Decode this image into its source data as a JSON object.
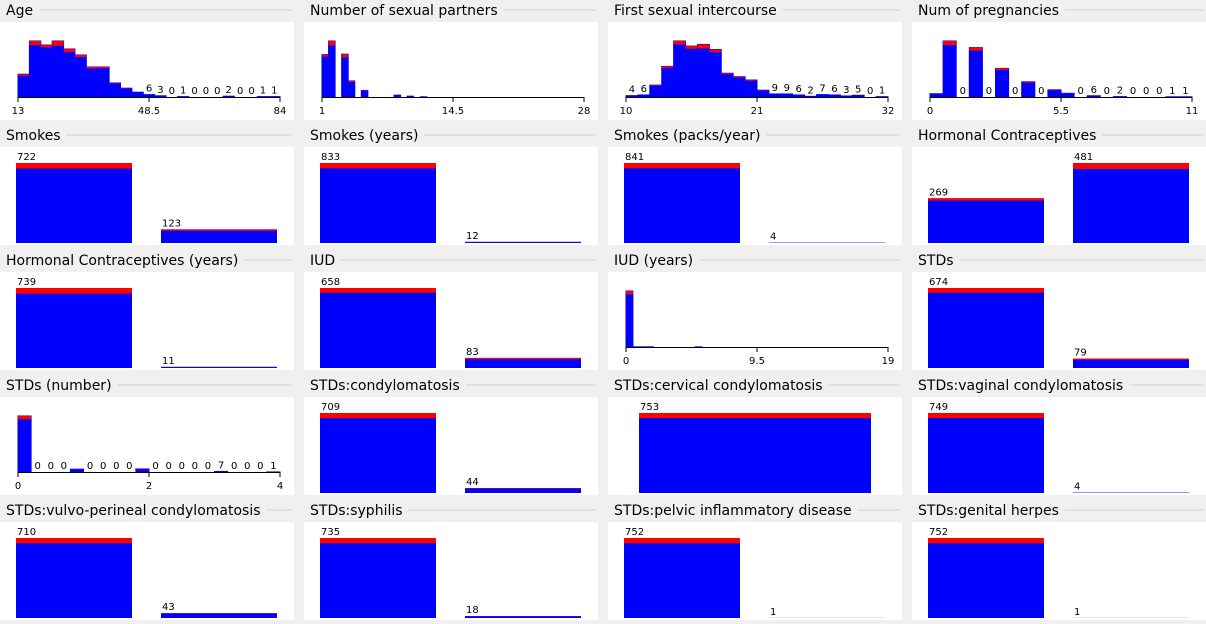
{
  "bar_color": "#0000ff",
  "top_color": "#ff0000",
  "panels": [
    {
      "title": "Age",
      "kind": "numeric",
      "axis": [
        13,
        48.5,
        84
      ],
      "values": [
        57,
        140,
        130,
        140,
        120,
        105,
        75,
        75,
        35,
        22,
        12,
        6,
        3,
        0,
        1,
        0,
        0,
        0,
        2,
        0,
        0,
        1,
        1
      ],
      "red": [
        4,
        10,
        6,
        12,
        8,
        5,
        4,
        3,
        1,
        1,
        0,
        0,
        0,
        0,
        0,
        0,
        0,
        0,
        0,
        0,
        0,
        0,
        0
      ],
      "value_labels": [
        null,
        null,
        null,
        null,
        null,
        null,
        null,
        null,
        null,
        null,
        null,
        "6",
        "3",
        "0",
        "1",
        "0",
        "0",
        "0",
        "2",
        "0",
        "0",
        "1",
        "1"
      ]
    },
    {
      "title": "Number of sexual partners",
      "kind": "numeric",
      "axis": [
        1,
        14.5,
        28
      ],
      "values": [
        206,
        272,
        0,
        208,
        78,
        0,
        32,
        0,
        0,
        0,
        0,
        9,
        0,
        4,
        0,
        1,
        0,
        0,
        0,
        0,
        0,
        0,
        0,
        0,
        0,
        0,
        0,
        0,
        0,
        0,
        0,
        0,
        0,
        0,
        0,
        0,
        0,
        0,
        0,
        0
      ],
      "red": [
        10,
        22,
        0,
        15,
        5,
        0,
        2,
        0,
        0,
        0,
        0,
        0,
        0,
        0,
        0,
        0,
        0,
        0,
        0,
        0,
        0,
        0,
        0,
        0,
        0,
        0,
        0,
        0,
        0,
        0,
        0,
        0,
        0,
        0,
        0,
        0,
        0,
        0,
        0,
        0
      ]
    },
    {
      "title": "First sexual intercourse",
      "kind": "numeric",
      "axis": [
        10,
        21,
        32
      ],
      "values": [
        4,
        6,
        35,
        90,
        165,
        150,
        155,
        140,
        70,
        60,
        50,
        20,
        9,
        9,
        6,
        2,
        7,
        6,
        3,
        5,
        0,
        1
      ],
      "red": [
        0,
        0,
        2,
        5,
        10,
        8,
        12,
        8,
        3,
        3,
        2,
        1,
        0,
        0,
        0,
        0,
        0,
        0,
        0,
        0,
        0,
        0
      ],
      "value_labels": [
        "4",
        "6",
        null,
        null,
        null,
        null,
        null,
        null,
        null,
        null,
        null,
        null,
        "9",
        "9",
        "6",
        "2",
        "7",
        "6",
        "3",
        "5",
        "0",
        "1"
      ]
    },
    {
      "title": "Num of pregnancies",
      "kind": "numeric",
      "axis": [
        0,
        5.5,
        11
      ],
      "values": [
        16,
        272,
        0,
        240,
        0,
        139,
        0,
        74,
        0,
        35,
        18,
        0,
        6,
        0,
        2,
        0,
        0,
        0,
        1,
        1
      ],
      "red": [
        1,
        20,
        0,
        15,
        0,
        8,
        0,
        4,
        0,
        2,
        1,
        0,
        0,
        0,
        0,
        0,
        0,
        0,
        0,
        0
      ],
      "value_labels": [
        null,
        null,
        "0",
        null,
        "0",
        null,
        "0",
        null,
        "0",
        null,
        null,
        "0",
        "6",
        "0",
        "2",
        "0",
        "0",
        "0",
        "1",
        "1"
      ]
    },
    {
      "title": "Smokes",
      "kind": "nominal",
      "values": [
        722,
        123
      ],
      "red": [
        50,
        12
      ]
    },
    {
      "title": "Smokes (years)",
      "kind": "nominal",
      "values": [
        833,
        12
      ],
      "red": [
        55,
        2
      ]
    },
    {
      "title": "Smokes (packs/year)",
      "kind": "nominal",
      "values": [
        841,
        4
      ],
      "red": [
        55,
        1
      ]
    },
    {
      "title": "Hormonal Contraceptives",
      "kind": "nominal",
      "values": [
        269,
        481
      ],
      "red": [
        14,
        36
      ]
    },
    {
      "title": "Hormonal Contraceptives (years)",
      "kind": "nominal",
      "values": [
        739,
        11
      ],
      "red": [
        52,
        1
      ]
    },
    {
      "title": "IUD",
      "kind": "nominal",
      "values": [
        658,
        83
      ],
      "red": [
        40,
        10
      ]
    },
    {
      "title": "IUD (years)",
      "kind": "numeric",
      "axis": [
        0,
        9.5,
        19
      ],
      "values": [
        658,
        2,
        2,
        2,
        0,
        0,
        0,
        0,
        0,
        0,
        2,
        0,
        0,
        0,
        0,
        0,
        0,
        0,
        0,
        0,
        0,
        0,
        0,
        0,
        0,
        0,
        0,
        0,
        0,
        0,
        0,
        0,
        0,
        0,
        0,
        0,
        0,
        0
      ],
      "red": [
        40,
        0,
        0,
        0,
        0,
        0,
        0,
        0,
        0,
        0,
        0,
        0,
        0,
        0,
        0,
        0,
        0,
        0,
        0,
        0,
        0,
        0,
        0,
        0,
        0,
        0,
        0,
        0,
        0,
        0,
        0,
        0,
        0,
        0,
        0,
        0,
        0,
        0
      ]
    },
    {
      "title": "STDs",
      "kind": "nominal",
      "values": [
        674,
        79
      ],
      "red": [
        40,
        10
      ]
    },
    {
      "title": "STDs (number)",
      "kind": "numeric",
      "axis": [
        0,
        2,
        4
      ],
      "values": [
        674,
        0,
        0,
        0,
        34,
        0,
        0,
        0,
        0,
        37,
        0,
        0,
        0,
        0,
        0,
        7,
        0,
        0,
        0,
        1
      ],
      "red": [
        40,
        0,
        0,
        0,
        3,
        0,
        0,
        0,
        0,
        4,
        0,
        0,
        0,
        0,
        0,
        0,
        0,
        0,
        0,
        0
      ],
      "value_labels": [
        null,
        "0",
        "0",
        "0",
        null,
        "0",
        "0",
        "0",
        "0",
        null,
        "0",
        "0",
        "0",
        "0",
        "0",
        "7",
        "0",
        "0",
        "0",
        "1"
      ]
    },
    {
      "title": "STDs:condylomatosis",
      "kind": "nominal",
      "values": [
        709,
        44
      ],
      "red": [
        46,
        4
      ]
    },
    {
      "title": "STDs:cervical condylomatosis",
      "kind": "nominal",
      "values": [
        753
      ],
      "red": [
        48
      ]
    },
    {
      "title": "STDs:vaginal condylomatosis",
      "kind": "nominal",
      "values": [
        749,
        4
      ],
      "red": [
        48,
        0
      ]
    },
    {
      "title": "STDs:vulvo-perineal condylomatosis",
      "kind": "nominal",
      "values": [
        710,
        43
      ],
      "red": [
        46,
        4
      ]
    },
    {
      "title": "STDs:syphilis",
      "kind": "nominal",
      "values": [
        735,
        18
      ],
      "red": [
        48,
        2
      ]
    },
    {
      "title": "STDs:pelvic inflammatory disease",
      "kind": "nominal",
      "values": [
        752,
        1
      ],
      "red": [
        50,
        0
      ]
    },
    {
      "title": "STDs:genital herpes",
      "kind": "nominal",
      "values": [
        752,
        1
      ],
      "red": [
        50,
        0
      ]
    }
  ]
}
